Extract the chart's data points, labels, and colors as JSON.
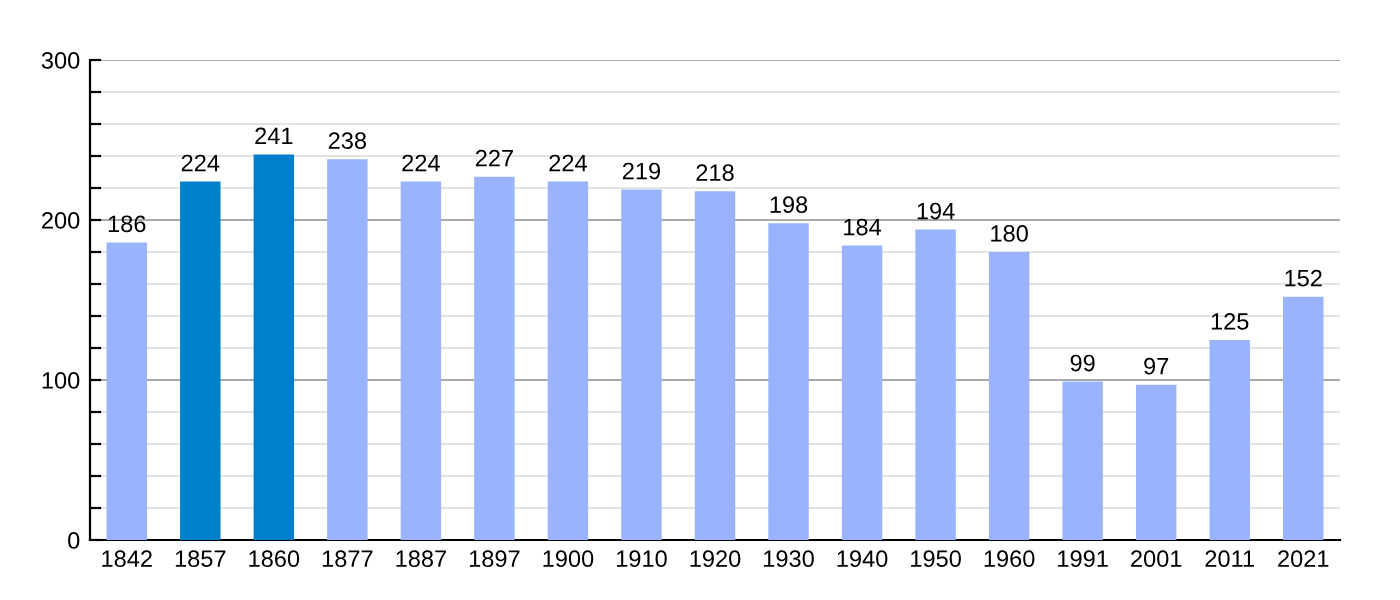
{
  "chart_data": {
    "type": "bar",
    "categories": [
      "1842",
      "1857",
      "1860",
      "1877",
      "1887",
      "1897",
      "1900",
      "1910",
      "1920",
      "1930",
      "1940",
      "1950",
      "1960",
      "1991",
      "2001",
      "2011",
      "2021"
    ],
    "values": [
      186,
      224,
      241,
      238,
      224,
      227,
      224,
      219,
      218,
      198,
      184,
      194,
      180,
      99,
      97,
      125,
      152
    ],
    "colors": [
      "#99b3ff",
      "#0080cc",
      "#0080cc",
      "#99b3ff",
      "#99b3ff",
      "#99b3ff",
      "#99b3ff",
      "#99b3ff",
      "#99b3ff",
      "#99b3ff",
      "#99b3ff",
      "#99b3ff",
      "#99b3ff",
      "#99b3ff",
      "#99b3ff",
      "#99b3ff",
      "#99b3ff"
    ],
    "ylim": [
      0,
      300
    ],
    "yticks": [
      0,
      {
        "value": 20,
        "label": null
      },
      {
        "value": 40,
        "label": null
      },
      {
        "value": 60,
        "label": null
      },
      {
        "value": 80,
        "label": null
      },
      100,
      {
        "value": 120,
        "label": null
      },
      {
        "value": 140,
        "label": null
      },
      {
        "value": 160,
        "label": null
      },
      {
        "value": 180,
        "label": null
      },
      200,
      {
        "value": 220,
        "label": null
      },
      {
        "value": 240,
        "label": null
      },
      {
        "value": 260,
        "label": null
      },
      {
        "value": 280,
        "label": null
      },
      300
    ],
    "grid": "y",
    "data_labels": true
  }
}
